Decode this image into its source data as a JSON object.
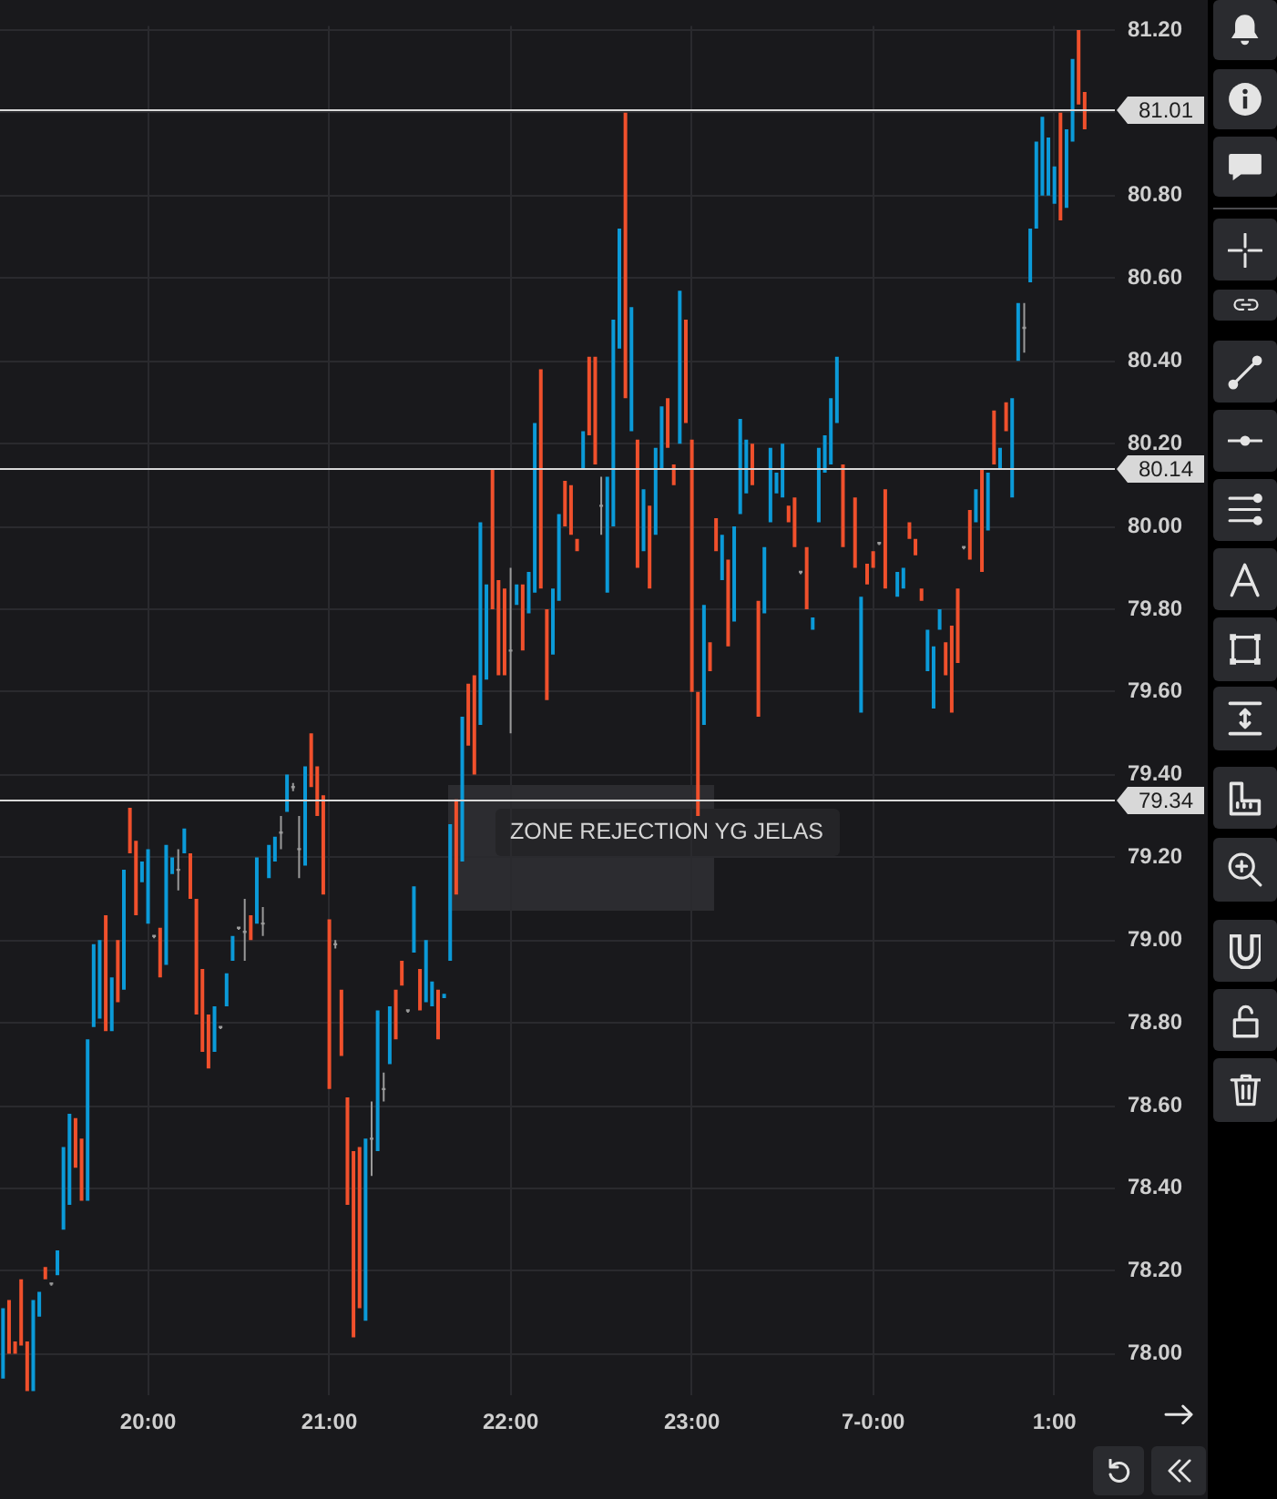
{
  "chart_data": {
    "type": "candlestick",
    "series": [
      {
        "color": "#0b9ad8",
        "x": [
          "--06-06T19:12",
          "--06-06T19:22",
          "--06-06T19:24",
          "--06-06T19:30",
          "--06-06T19:32",
          "--06-06T19:34",
          "--06-06T19:40",
          "--06-06T19:42",
          "--06-06T19:44",
          "--06-06T19:48",
          "--06-06T19:52",
          "--06-06T19:58",
          "--06-06T20:00",
          "--06-06T20:06",
          "--06-06T20:08",
          "--06-06T20:12",
          "--06-06T20:22",
          "--06-06T20:26",
          "--06-06T20:28",
          "--06-06T20:36",
          "--06-06T20:40",
          "--06-06T20:42",
          "--06-06T20:46",
          "--06-06T20:52",
          "--06-06T21:12",
          "--06-06T21:16",
          "--06-06T21:20",
          "--06-06T21:28",
          "--06-06T21:32",
          "--06-06T21:34",
          "--06-06T21:38",
          "--06-06T21:40",
          "--06-06T21:44",
          "--06-06T21:50",
          "--06-06T21:52",
          "--06-06T22:02",
          "--06-06T22:06",
          "--06-06T22:08",
          "--06-06T22:14",
          "--06-06T22:16",
          "--06-06T22:24",
          "--06-06T22:32",
          "--06-06T22:34",
          "--06-06T22:36",
          "--06-06T22:40",
          "--06-06T22:44",
          "--06-06T22:48",
          "--06-06T22:50",
          "--06-06T22:56",
          "--06-06T23:04",
          "--06-06T23:10",
          "--06-06T23:14",
          "--06-06T23:16",
          "--06-06T23:18",
          "--06-06T23:24",
          "--06-06T23:26",
          "--06-06T23:28",
          "--06-06T23:30",
          "--06-06T23:40",
          "--06-06T23:42",
          "--06-06T23:44",
          "--06-06T23:46",
          "--06-06T23:48",
          "--06-06T23:56",
          "--06-07T00:08",
          "--06-07T00:10",
          "--06-07T00:18",
          "--06-07T00:20",
          "--06-07T00:22",
          "--06-07T00:34",
          "--06-07T00:38",
          "--06-07T00:42",
          "--06-07T00:46",
          "--06-07T00:48",
          "--06-07T00:52",
          "--06-07T00:54",
          "--06-07T00:56",
          "--06-07T00:58",
          "--06-07T01:00",
          "--06-07T01:04",
          "--06-07T01:06"
        ],
        "ohlc": [
          [
            77.94,
            78.11,
            77.94,
            78.11
          ],
          [
            77.91,
            78.13,
            77.91,
            78.13
          ],
          [
            78.09,
            78.15,
            78.09,
            78.15
          ],
          [
            78.19,
            78.25,
            78.19,
            78.25
          ],
          [
            78.3,
            78.5,
            78.3,
            78.5
          ],
          [
            78.36,
            78.58,
            78.36,
            78.58
          ],
          [
            78.37,
            78.76,
            78.37,
            78.76
          ],
          [
            78.79,
            78.99,
            78.79,
            78.99
          ],
          [
            78.81,
            79,
            78.81,
            79
          ],
          [
            78.78,
            78.91,
            78.78,
            78.91
          ],
          [
            78.88,
            79.17,
            78.88,
            79.17
          ],
          [
            79.14,
            79.19,
            79.14,
            79.19
          ],
          [
            79.04,
            79.22,
            79.04,
            79.22
          ],
          [
            78.94,
            79.23,
            78.94,
            79.23
          ],
          [
            79.16,
            79.2,
            79.16,
            79.2
          ],
          [
            79.21,
            79.27,
            79.21,
            79.27
          ],
          [
            78.73,
            78.84,
            78.73,
            78.84
          ],
          [
            78.84,
            78.92,
            78.84,
            78.92
          ],
          [
            78.95,
            79.01,
            78.95,
            79.01
          ],
          [
            79.04,
            79.2,
            79.04,
            79.2
          ],
          [
            79.15,
            79.23,
            79.15,
            79.23
          ],
          [
            79.19,
            79.25,
            79.19,
            79.25
          ],
          [
            79.31,
            79.4,
            79.31,
            79.4
          ],
          [
            79.18,
            79.42,
            79.18,
            79.42
          ],
          [
            78.08,
            78.52,
            78.08,
            78.52
          ],
          [
            78.49,
            78.83,
            78.49,
            78.83
          ],
          [
            78.7,
            78.84,
            78.7,
            78.84
          ],
          [
            78.97,
            79.13,
            78.97,
            79.13
          ],
          [
            78.85,
            79,
            78.85,
            79
          ],
          [
            78.84,
            78.9,
            78.84,
            78.9
          ],
          [
            78.86,
            78.87,
            78.86,
            78.87
          ],
          [
            78.95,
            79.28,
            78.95,
            79.28
          ],
          [
            79.19,
            79.54,
            79.19,
            79.54
          ],
          [
            79.52,
            80.01,
            79.52,
            80.01
          ],
          [
            79.63,
            79.86,
            79.63,
            79.86
          ],
          [
            79.81,
            79.86,
            79.81,
            79.86
          ],
          [
            79.79,
            79.89,
            79.79,
            79.89
          ],
          [
            79.84,
            80.25,
            79.84,
            80.25
          ],
          [
            79.69,
            79.85,
            79.69,
            79.85
          ],
          [
            79.82,
            80.03,
            79.82,
            80.03
          ],
          [
            80.14,
            80.23,
            80.14,
            80.23
          ],
          [
            79.84,
            80.12,
            79.84,
            80.12
          ],
          [
            80,
            80.5,
            80,
            80.5
          ],
          [
            80.43,
            80.72,
            80.43,
            80.72
          ],
          [
            80.23,
            80.53,
            80.23,
            80.53
          ],
          [
            79.94,
            80.09,
            79.94,
            80.09
          ],
          [
            79.98,
            80.19,
            79.98,
            80.19
          ],
          [
            80.14,
            80.29,
            80.14,
            80.29
          ],
          [
            80.2,
            80.57,
            80.2,
            80.57
          ],
          [
            79.52,
            79.81,
            79.52,
            79.81
          ],
          [
            79.87,
            79.98,
            79.87,
            79.98
          ],
          [
            79.77,
            80,
            79.77,
            80
          ],
          [
            80.03,
            80.26,
            80.03,
            80.26
          ],
          [
            80.08,
            80.21,
            80.08,
            80.21
          ],
          [
            79.79,
            79.95,
            79.79,
            79.95
          ],
          [
            80.01,
            80.19,
            80.01,
            80.19
          ],
          [
            80.08,
            80.13,
            80.08,
            80.13
          ],
          [
            80.07,
            80.2,
            80.07,
            80.2
          ],
          [
            79.75,
            79.78,
            79.75,
            79.78
          ],
          [
            80.01,
            80.19,
            80.01,
            80.19
          ],
          [
            80.13,
            80.22,
            80.13,
            80.22
          ],
          [
            80.15,
            80.31,
            80.15,
            80.31
          ],
          [
            80.25,
            80.41,
            80.25,
            80.41
          ],
          [
            79.55,
            79.83,
            79.55,
            79.83
          ],
          [
            79.83,
            79.89,
            79.83,
            79.89
          ],
          [
            79.85,
            79.9,
            79.85,
            79.9
          ],
          [
            79.65,
            79.75,
            79.65,
            79.75
          ],
          [
            79.56,
            79.71,
            79.56,
            79.71
          ],
          [
            79.75,
            79.8,
            79.75,
            79.8
          ],
          [
            80.01,
            80.09,
            80.01,
            80.09
          ],
          [
            79.99,
            80.13,
            79.99,
            80.13
          ],
          [
            80.14,
            80.19,
            80.14,
            80.19
          ],
          [
            80.07,
            80.31,
            80.07,
            80.31
          ],
          [
            80.4,
            80.54,
            80.4,
            80.54
          ],
          [
            80.59,
            80.72,
            80.59,
            80.72
          ],
          [
            80.72,
            80.93,
            80.72,
            80.93
          ],
          [
            80.8,
            80.99,
            80.8,
            80.99
          ],
          [
            80.8,
            80.94,
            80.8,
            80.94
          ],
          [
            80.78,
            80.87,
            80.78,
            80.87
          ],
          [
            80.77,
            80.96,
            80.77,
            80.96
          ],
          [
            80.93,
            81.13,
            80.93,
            81.13
          ]
        ]
      },
      {
        "color": "#f0502c",
        "x": [
          "--06-06T19:14",
          "--06-06T19:16",
          "--06-06T19:18",
          "--06-06T19:20",
          "--06-06T19:26",
          "--06-06T19:36",
          "--06-06T19:38",
          "--06-06T19:46",
          "--06-06T19:50",
          "--06-06T19:54",
          "--06-06T19:56",
          "--06-06T20:04",
          "--06-06T20:14",
          "--06-06T20:16",
          "--06-06T20:18",
          "--06-06T20:20",
          "--06-06T20:34",
          "--06-06T20:54",
          "--06-06T20:56",
          "--06-06T20:58",
          "--06-06T21:00",
          "--06-06T21:04",
          "--06-06T21:06",
          "--06-06T21:08",
          "--06-06T21:10",
          "--06-06T21:22",
          "--06-06T21:24",
          "--06-06T21:30",
          "--06-06T21:36",
          "--06-06T21:42",
          "--06-06T21:46",
          "--06-06T21:48",
          "--06-06T21:54",
          "--06-06T21:56",
          "--06-06T21:58",
          "--06-06T22:04",
          "--06-06T22:10",
          "--06-06T22:12",
          "--06-06T22:18",
          "--06-06T22:20",
          "--06-06T22:22",
          "--06-06T22:26",
          "--06-06T22:28",
          "--06-06T22:38",
          "--06-06T22:42",
          "--06-06T22:46",
          "--06-06T22:52",
          "--06-06T22:54",
          "--06-06T22:58",
          "--06-06T23:00",
          "--06-06T23:02",
          "--06-06T23:06",
          "--06-06T23:08",
          "--06-06T23:12",
          "--06-06T23:20",
          "--06-06T23:22",
          "--06-06T23:32",
          "--06-06T23:34",
          "--06-06T23:38",
          "--06-06T23:50",
          "--06-06T23:54",
          "--06-06T23:58",
          "--06-07T00:00",
          "--06-07T00:04",
          "--06-07T00:12",
          "--06-07T00:14",
          "--06-07T00:16",
          "--06-07T00:24",
          "--06-07T00:26",
          "--06-07T00:28",
          "--06-07T00:32",
          "--06-07T00:36",
          "--06-07T00:40",
          "--06-07T00:44",
          "--06-07T01:02",
          "--06-07T01:08",
          "--06-07T01:10"
        ],
        "ohlc": [
          [
            78.13,
            78.13,
            78,
            78
          ],
          [
            78.03,
            78.03,
            78,
            78
          ],
          [
            78.18,
            78.18,
            78.02,
            78.02
          ],
          [
            78.03,
            78.03,
            77.91,
            77.91
          ],
          [
            78.21,
            78.21,
            78.18,
            78.18
          ],
          [
            78.57,
            78.57,
            78.45,
            78.45
          ],
          [
            78.52,
            78.52,
            78.37,
            78.37
          ],
          [
            79.06,
            79.06,
            78.78,
            78.78
          ],
          [
            79,
            79,
            78.85,
            78.85
          ],
          [
            79.32,
            79.32,
            79.21,
            79.21
          ],
          [
            79.24,
            79.24,
            79.06,
            79.06
          ],
          [
            79.03,
            79.03,
            78.91,
            78.91
          ],
          [
            79.21,
            79.21,
            79.1,
            79.1
          ],
          [
            79.1,
            79.1,
            78.82,
            78.82
          ],
          [
            78.93,
            78.93,
            78.73,
            78.73
          ],
          [
            78.82,
            78.82,
            78.69,
            78.69
          ],
          [
            79.06,
            79.06,
            79,
            79
          ],
          [
            79.5,
            79.5,
            79.37,
            79.37
          ],
          [
            79.42,
            79.42,
            79.3,
            79.3
          ],
          [
            79.35,
            79.35,
            79.11,
            79.11
          ],
          [
            79.05,
            79.05,
            78.64,
            78.64
          ],
          [
            78.88,
            78.88,
            78.72,
            78.72
          ],
          [
            78.62,
            78.62,
            78.36,
            78.36
          ],
          [
            78.49,
            78.49,
            78.04,
            78.04
          ],
          [
            78.5,
            78.5,
            78.11,
            78.11
          ],
          [
            78.88,
            78.88,
            78.76,
            78.76
          ],
          [
            78.95,
            78.95,
            78.89,
            78.89
          ],
          [
            78.93,
            78.93,
            78.83,
            78.83
          ],
          [
            78.88,
            78.88,
            78.76,
            78.76
          ],
          [
            79.34,
            79.34,
            79.11,
            79.11
          ],
          [
            79.62,
            79.62,
            79.47,
            79.47
          ],
          [
            79.64,
            79.64,
            79.4,
            79.4
          ],
          [
            80.14,
            80.14,
            79.8,
            79.8
          ],
          [
            79.87,
            79.87,
            79.64,
            79.64
          ],
          [
            79.85,
            79.85,
            79.64,
            79.64
          ],
          [
            79.86,
            79.86,
            79.7,
            79.7
          ],
          [
            80.38,
            80.38,
            79.85,
            79.85
          ],
          [
            79.8,
            79.8,
            79.58,
            79.58
          ],
          [
            80.11,
            80.11,
            80,
            80
          ],
          [
            80.1,
            80.1,
            79.98,
            79.98
          ],
          [
            79.97,
            79.97,
            79.94,
            79.94
          ],
          [
            80.41,
            80.41,
            80.22,
            80.22
          ],
          [
            80.41,
            80.41,
            80.15,
            80.15
          ],
          [
            81,
            81,
            80.31,
            80.31
          ],
          [
            80.21,
            80.21,
            79.9,
            79.9
          ],
          [
            80.05,
            80.05,
            79.85,
            79.85
          ],
          [
            80.31,
            80.31,
            80.19,
            80.19
          ],
          [
            80.15,
            80.15,
            80.1,
            80.1
          ],
          [
            80.5,
            80.5,
            80.25,
            80.25
          ],
          [
            80.21,
            80.21,
            79.6,
            79.6
          ],
          [
            79.6,
            79.6,
            79.3,
            79.3
          ],
          [
            79.72,
            79.72,
            79.65,
            79.65
          ],
          [
            80.02,
            80.02,
            79.94,
            79.94
          ],
          [
            79.92,
            79.92,
            79.71,
            79.71
          ],
          [
            80.2,
            80.2,
            80.1,
            80.1
          ],
          [
            79.82,
            79.82,
            79.54,
            79.54
          ],
          [
            80.05,
            80.05,
            80.01,
            80.01
          ],
          [
            80.07,
            80.07,
            79.95,
            79.95
          ],
          [
            79.95,
            79.95,
            79.8,
            79.8
          ],
          [
            80.15,
            80.15,
            79.95,
            79.95
          ],
          [
            80.07,
            80.07,
            79.9,
            79.9
          ],
          [
            79.91,
            79.91,
            79.86,
            79.86
          ],
          [
            79.94,
            79.94,
            79.9,
            79.9
          ],
          [
            80.09,
            80.09,
            79.85,
            79.85
          ],
          [
            80.01,
            80.01,
            79.97,
            79.97
          ],
          [
            79.97,
            79.97,
            79.93,
            79.93
          ],
          [
            79.85,
            79.85,
            79.82,
            79.82
          ],
          [
            79.72,
            79.72,
            79.64,
            79.64
          ],
          [
            79.76,
            79.76,
            79.55,
            79.55
          ],
          [
            79.85,
            79.85,
            79.67,
            79.67
          ],
          [
            80.04,
            80.04,
            79.92,
            79.92
          ],
          [
            80.14,
            80.14,
            79.89,
            79.89
          ],
          [
            80.28,
            80.28,
            80.15,
            80.15
          ],
          [
            80.3,
            80.3,
            80.23,
            80.23
          ],
          [
            81,
            81,
            80.74,
            80.74
          ],
          [
            81.2,
            81.2,
            81.02,
            81.02
          ],
          [
            81.05,
            81.05,
            80.96,
            80.96
          ]
        ]
      },
      {
        "color": "#9a9a9a",
        "x": [
          "--06-06T19:28",
          "--06-06T20:02",
          "--06-06T20:10",
          "--06-06T20:24",
          "--06-06T20:30",
          "--06-06T20:32",
          "--06-06T20:38",
          "--06-06T20:44",
          "--06-06T20:48",
          "--06-06T20:50",
          "--06-06T21:02",
          "--06-06T21:14",
          "--06-06T21:18",
          "--06-06T21:26",
          "--06-06T22:00",
          "--06-06T22:30",
          "--06-06T23:36",
          "--06-07T00:02",
          "--06-07T00:30",
          "--06-07T00:50"
        ],
        "ohlc": [
          [
            78.17,
            78.17,
            78.17,
            78.17
          ],
          [
            79.01,
            79.01,
            79.01,
            79.01
          ],
          [
            79.17,
            79.22,
            79.12,
            79.17
          ],
          [
            78.79,
            78.79,
            78.79,
            78.79
          ],
          [
            79.03,
            79.03,
            79.03,
            79.03
          ],
          [
            79.02,
            79.1,
            78.95,
            79.02
          ],
          [
            79.04,
            79.08,
            79.01,
            79.04
          ],
          [
            79.26,
            79.3,
            79.22,
            79.26
          ],
          [
            79.37,
            79.38,
            79.36,
            79.37
          ],
          [
            79.22,
            79.3,
            79.15,
            79.22
          ],
          [
            78.99,
            79,
            78.98,
            78.99
          ],
          [
            78.52,
            78.61,
            78.43,
            78.52
          ],
          [
            78.64,
            78.68,
            78.61,
            78.64
          ],
          [
            78.83,
            78.83,
            78.83,
            78.83
          ],
          [
            79.7,
            79.9,
            79.5,
            79.7
          ],
          [
            80.05,
            80.12,
            79.98,
            80.05
          ],
          [
            79.89,
            79.89,
            79.89,
            79.89
          ],
          [
            79.96,
            79.96,
            79.96,
            79.96
          ],
          [
            79.95,
            79.95,
            79.95,
            79.95
          ],
          [
            80.48,
            80.54,
            80.42,
            80.48
          ]
        ]
      }
    ],
    "xlim": [
      "--06-06T19:11",
      "--06-07T01:20"
    ],
    "xticks": [
      {
        "value": "--06-06T20:00",
        "label": "20:00"
      },
      {
        "value": "--06-06T21:00",
        "label": "21:00"
      },
      {
        "value": "--06-06T22:00",
        "label": "22:00"
      },
      {
        "value": "--06-06T23:00",
        "label": "23:00"
      },
      {
        "value": "--06-07T00:00",
        "label": "7-0:00"
      },
      {
        "value": "--06-07T01:00",
        "label": "1:00"
      }
    ],
    "ylim": [
      77.9,
      81.21
    ],
    "yticks": [
      {
        "value": 78,
        "label": "78.00"
      },
      {
        "value": 78.2,
        "label": "78.20"
      },
      {
        "value": 78.4,
        "label": "78.40"
      },
      {
        "value": 78.6,
        "label": "78.60"
      },
      {
        "value": 78.8,
        "label": "78.80"
      },
      {
        "value": 79,
        "label": "79.00"
      },
      {
        "value": 79.2,
        "label": "79.20"
      },
      {
        "value": 79.4,
        "label": "79.40"
      },
      {
        "value": 79.6,
        "label": "79.60"
      },
      {
        "value": 79.8,
        "label": "79.80"
      },
      {
        "value": 80,
        "label": "80.00"
      },
      {
        "value": 80.2,
        "label": "80.20"
      },
      {
        "value": 80.4,
        "label": "80.40"
      },
      {
        "value": 80.6,
        "label": "80.60"
      },
      {
        "value": 80.8,
        "label": "80.80"
      },
      {
        "value": 81,
        "label": null
      },
      {
        "value": 81.2,
        "label": "81.20"
      }
    ],
    "grid": true,
    "ref_lines": [
      {
        "axis": "y",
        "value": 81.01,
        "label": "81.01",
        "color": "#d8d8d8"
      },
      {
        "axis": "y",
        "value": 80.14,
        "label": "80.14",
        "color": "#d8d8d8"
      },
      {
        "axis": "y",
        "value": 79.34,
        "label": "79.34",
        "color": "#d8d8d8"
      }
    ],
    "annotations": [
      "ZONE REJECTION YG JELAS"
    ]
  }
}
